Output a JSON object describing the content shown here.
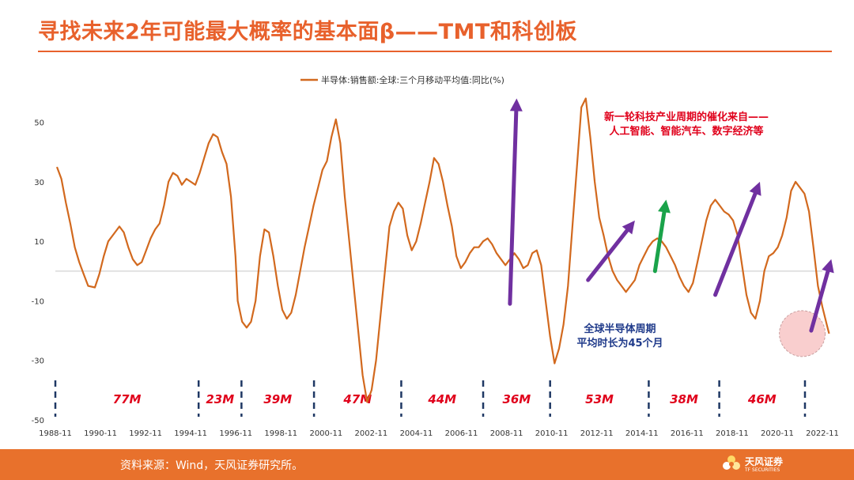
{
  "title": "寻找未来2年可能最大概率的基本面β——TMT和科创板",
  "footer": {
    "source": "资料来源：Wind，天风证券研究所。",
    "logo_text": "天风证券",
    "logo_sub": "TF SECURITIES"
  },
  "colors": {
    "accent": "#e8612c",
    "line": "#d2691e",
    "purple": "#7030a0",
    "green": "#1aa34a",
    "red_text": "#e0001b",
    "navy_text": "#1f3a8a",
    "cycle_label": "#e0001b",
    "dash": "#1f3864"
  },
  "chart_data": {
    "type": "line",
    "title": "",
    "legend": "半导体:销售额:全球:三个月移动平均值:同比(%)",
    "ylim": [
      -50,
      60
    ],
    "yticks": [
      -50,
      -30,
      -10,
      10,
      30,
      50
    ],
    "xlim": [
      1988.83,
      2023.2
    ],
    "xticks": [
      "1988-11",
      "1990-11",
      "1992-11",
      "1994-11",
      "1996-11",
      "1998-11",
      "2000-11",
      "2002-11",
      "2004-11",
      "2006-11",
      "2008-11",
      "2010-11",
      "2012-11",
      "2014-11",
      "2016-11",
      "2018-11",
      "2020-11",
      "2022-11"
    ],
    "series": [
      {
        "name": "半导体:销售额:全球:三个月移动平均值:同比(%)",
        "points": [
          [
            1988.9,
            35
          ],
          [
            1989.1,
            31
          ],
          [
            1989.3,
            23
          ],
          [
            1989.5,
            16
          ],
          [
            1989.7,
            8
          ],
          [
            1989.9,
            3
          ],
          [
            1990.1,
            -1
          ],
          [
            1990.3,
            -5
          ],
          [
            1990.6,
            -5.5
          ],
          [
            1990.8,
            -1
          ],
          [
            1991.0,
            5
          ],
          [
            1991.2,
            10
          ],
          [
            1991.5,
            13
          ],
          [
            1991.7,
            15
          ],
          [
            1991.9,
            13
          ],
          [
            1992.1,
            8
          ],
          [
            1992.3,
            4
          ],
          [
            1992.5,
            2
          ],
          [
            1992.7,
            3
          ],
          [
            1992.9,
            7
          ],
          [
            1993.1,
            11
          ],
          [
            1993.3,
            14
          ],
          [
            1993.5,
            16
          ],
          [
            1993.7,
            22
          ],
          [
            1993.9,
            30
          ],
          [
            1994.1,
            33
          ],
          [
            1994.3,
            32
          ],
          [
            1994.5,
            29
          ],
          [
            1994.7,
            31
          ],
          [
            1994.9,
            30
          ],
          [
            1995.1,
            29
          ],
          [
            1995.3,
            33
          ],
          [
            1995.5,
            38
          ],
          [
            1995.7,
            43
          ],
          [
            1995.9,
            46
          ],
          [
            1996.1,
            45
          ],
          [
            1996.3,
            40
          ],
          [
            1996.5,
            36
          ],
          [
            1996.7,
            25
          ],
          [
            1996.9,
            5
          ],
          [
            1997.0,
            -10
          ],
          [
            1997.2,
            -17
          ],
          [
            1997.4,
            -19
          ],
          [
            1997.6,
            -17
          ],
          [
            1997.8,
            -10
          ],
          [
            1998.0,
            5
          ],
          [
            1998.2,
            14
          ],
          [
            1998.4,
            13
          ],
          [
            1998.6,
            5
          ],
          [
            1998.8,
            -5
          ],
          [
            1999.0,
            -13
          ],
          [
            1999.2,
            -16
          ],
          [
            1999.4,
            -14
          ],
          [
            1999.6,
            -8
          ],
          [
            1999.8,
            0
          ],
          [
            2000.0,
            8
          ],
          [
            2000.2,
            15
          ],
          [
            2000.4,
            22
          ],
          [
            2000.6,
            28
          ],
          [
            2000.8,
            34
          ],
          [
            2001.0,
            37
          ],
          [
            2001.2,
            45
          ],
          [
            2001.4,
            51
          ],
          [
            2001.6,
            43
          ],
          [
            2001.8,
            25
          ],
          [
            2002.0,
            10
          ],
          [
            2002.2,
            -5
          ],
          [
            2002.4,
            -20
          ],
          [
            2002.6,
            -35
          ],
          [
            2002.8,
            -44
          ],
          [
            2003.0,
            -40
          ],
          [
            2003.2,
            -30
          ],
          [
            2003.4,
            -15
          ],
          [
            2003.6,
            0
          ],
          [
            2003.8,
            15
          ],
          [
            2004.0,
            20
          ],
          [
            2004.2,
            23
          ],
          [
            2004.4,
            21
          ],
          [
            2004.6,
            12
          ],
          [
            2004.8,
            7
          ],
          [
            2005.0,
            10
          ],
          [
            2005.2,
            16
          ],
          [
            2005.4,
            23
          ],
          [
            2005.6,
            30
          ],
          [
            2005.8,
            38
          ],
          [
            2006.0,
            36
          ],
          [
            2006.2,
            30
          ],
          [
            2006.4,
            22
          ],
          [
            2006.6,
            15
          ],
          [
            2006.8,
            5
          ],
          [
            2007.0,
            1
          ],
          [
            2007.2,
            3
          ],
          [
            2007.4,
            6
          ],
          [
            2007.6,
            8
          ],
          [
            2007.8,
            8
          ],
          [
            2008.0,
            10
          ],
          [
            2008.2,
            11
          ],
          [
            2008.4,
            9
          ],
          [
            2008.6,
            6
          ],
          [
            2008.8,
            4
          ],
          [
            2009.0,
            2
          ],
          [
            2009.2,
            4
          ],
          [
            2009.4,
            6
          ],
          [
            2009.6,
            4
          ],
          [
            2009.8,
            1
          ],
          [
            2010.0,
            2
          ],
          [
            2010.2,
            6
          ],
          [
            2010.4,
            7
          ],
          [
            2010.6,
            2
          ],
          [
            2010.8,
            -10
          ],
          [
            2011.0,
            -22
          ],
          [
            2011.2,
            -31
          ],
          [
            2011.4,
            -26
          ],
          [
            2011.6,
            -18
          ],
          [
            2011.8,
            -5
          ],
          [
            2012.0,
            15
          ],
          [
            2012.2,
            35
          ],
          [
            2012.4,
            55
          ],
          [
            2012.6,
            58
          ],
          [
            2012.8,
            45
          ],
          [
            2013.0,
            30
          ],
          [
            2013.2,
            18
          ],
          [
            2013.4,
            12
          ],
          [
            2013.6,
            5
          ],
          [
            2013.8,
            0
          ],
          [
            2014.0,
            -3
          ],
          [
            2014.2,
            -5
          ],
          [
            2014.4,
            -7
          ],
          [
            2014.6,
            -5
          ],
          [
            2014.8,
            -3
          ],
          [
            2015.0,
            2
          ],
          [
            2015.2,
            5
          ],
          [
            2015.4,
            8
          ],
          [
            2015.6,
            10
          ],
          [
            2015.8,
            11
          ],
          [
            2016.0,
            10
          ],
          [
            2016.2,
            8
          ],
          [
            2016.4,
            5
          ],
          [
            2016.6,
            2
          ],
          [
            2016.8,
            -2
          ],
          [
            2017.0,
            -5
          ],
          [
            2017.2,
            -7
          ],
          [
            2017.4,
            -4
          ],
          [
            2017.6,
            3
          ],
          [
            2017.8,
            10
          ],
          [
            2018.0,
            17
          ],
          [
            2018.2,
            22
          ],
          [
            2018.4,
            24
          ],
          [
            2018.6,
            22
          ],
          [
            2018.8,
            20
          ],
          [
            2019.0,
            19
          ],
          [
            2019.2,
            17
          ],
          [
            2019.4,
            12
          ],
          [
            2019.6,
            2
          ],
          [
            2019.8,
            -8
          ],
          [
            2020.0,
            -14
          ],
          [
            2020.2,
            -16
          ],
          [
            2020.4,
            -10
          ],
          [
            2020.6,
            0
          ],
          [
            2020.8,
            5
          ],
          [
            2021.0,
            6
          ],
          [
            2021.2,
            8
          ],
          [
            2021.4,
            12
          ],
          [
            2021.6,
            18
          ],
          [
            2021.8,
            27
          ],
          [
            2022.0,
            30
          ],
          [
            2022.2,
            28
          ],
          [
            2022.4,
            26
          ],
          [
            2022.6,
            20
          ],
          [
            2022.8,
            8
          ],
          [
            2023.0,
            -5
          ],
          [
            2023.2,
            -12
          ],
          [
            2023.4,
            -18
          ],
          [
            2023.5,
            -21
          ]
        ]
      }
    ],
    "cycles": [
      {
        "label": "77M",
        "from": 1988.83,
        "to": 1995.25
      },
      {
        "label": "23M",
        "from": 1995.25,
        "to": 1997.17
      },
      {
        "label": "39M",
        "from": 1997.17,
        "to": 2000.42
      },
      {
        "label": "47M",
        "from": 2000.42,
        "to": 2004.33
      },
      {
        "label": "44M",
        "from": 2004.33,
        "to": 2008.0
      },
      {
        "label": "36M",
        "from": 2008.0,
        "to": 2011.0
      },
      {
        "label": "53M",
        "from": 2011.0,
        "to": 2015.42
      },
      {
        "label": "38M",
        "from": 2015.42,
        "to": 2018.58
      },
      {
        "label": "46M",
        "from": 2018.58,
        "to": 2022.42
      }
    ],
    "annotations": {
      "red_note": [
        "新一轮科技产业周期的催化来自——",
        "人工智能、智能汽车、数字经济等"
      ],
      "navy_note": [
        "全球半导体周期",
        "平均时长为45个月"
      ]
    },
    "arrows": [
      {
        "color": "purple",
        "from": [
          2009.2,
          -11
        ],
        "to": [
          2009.5,
          58
        ]
      },
      {
        "color": "purple",
        "from": [
          2012.7,
          -3
        ],
        "to": [
          2014.8,
          17
        ]
      },
      {
        "color": "green",
        "from": [
          2015.7,
          0
        ],
        "to": [
          2016.2,
          24
        ]
      },
      {
        "color": "purple",
        "from": [
          2018.4,
          -8
        ],
        "to": [
          2020.4,
          30
        ]
      },
      {
        "color": "purple",
        "from": [
          2022.7,
          -20
        ],
        "to": [
          2023.6,
          4
        ]
      }
    ],
    "highlight": {
      "x": 2022.3,
      "y": -21
    }
  }
}
